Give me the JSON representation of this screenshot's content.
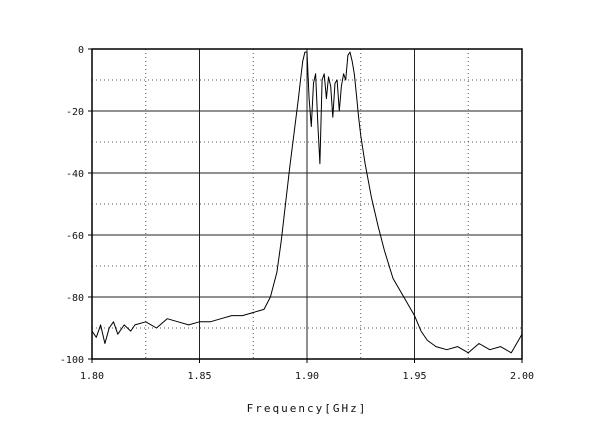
{
  "chart_data": {
    "type": "line",
    "xlabel": "Frequency[GHz]",
    "ylabel": "",
    "xlim": [
      1.8,
      2.0
    ],
    "ylim": [
      -100,
      0
    ],
    "x_ticks": [
      1.8,
      1.85,
      1.9,
      1.95,
      2.0
    ],
    "x_tick_labels": [
      "1.80",
      "1.85",
      "1.90",
      "1.95",
      "2.00"
    ],
    "y_ticks": [
      0,
      -20,
      -40,
      -60,
      -80,
      -100
    ],
    "y_tick_labels": [
      "0",
      "-20",
      "-40",
      "-60",
      "-80",
      "-100"
    ],
    "grid": true,
    "series": [
      {
        "color": "#000000",
        "x": [
          1.8,
          1.802,
          1.804,
          1.806,
          1.808,
          1.81,
          1.812,
          1.815,
          1.818,
          1.82,
          1.825,
          1.83,
          1.835,
          1.84,
          1.845,
          1.85,
          1.855,
          1.86,
          1.865,
          1.87,
          1.875,
          1.88,
          1.883,
          1.886,
          1.888,
          1.89,
          1.892,
          1.894,
          1.896,
          1.897,
          1.898,
          1.899,
          1.9,
          1.901,
          1.902,
          1.903,
          1.904,
          1.905,
          1.906,
          1.907,
          1.908,
          1.909,
          1.91,
          1.911,
          1.912,
          1.913,
          1.914,
          1.915,
          1.916,
          1.917,
          1.918,
          1.919,
          1.92,
          1.921,
          1.922,
          1.923,
          1.924,
          1.925,
          1.927,
          1.93,
          1.933,
          1.936,
          1.94,
          1.945,
          1.95,
          1.953,
          1.956,
          1.96,
          1.965,
          1.97,
          1.975,
          1.98,
          1.985,
          1.99,
          1.995,
          2.0
        ],
        "y": [
          -91,
          -93,
          -89,
          -95,
          -90,
          -88,
          -92,
          -89,
          -91,
          -89,
          -88,
          -90,
          -87,
          -88,
          -89,
          -88,
          -88,
          -87,
          -86,
          -86,
          -85,
          -84,
          -80,
          -72,
          -62,
          -50,
          -38,
          -27,
          -16,
          -10,
          -4,
          -1,
          -1,
          -16,
          -25,
          -11,
          -8,
          -24,
          -37,
          -10,
          -8,
          -16,
          -9,
          -12,
          -22,
          -11,
          -10,
          -20,
          -12,
          -8,
          -10,
          -2,
          -1,
          -4,
          -8,
          -15,
          -22,
          -28,
          -37,
          -48,
          -57,
          -65,
          -74,
          -80,
          -86,
          -91,
          -94,
          -96,
          -97,
          -96,
          -98,
          -95,
          -97,
          -96,
          -98,
          -92
        ]
      }
    ]
  }
}
